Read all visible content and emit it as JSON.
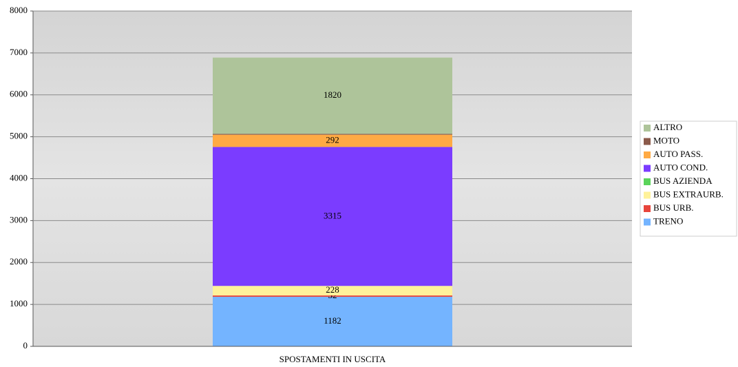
{
  "chart_data": {
    "type": "bar",
    "stacked": true,
    "categories": [
      "SPOSTAMENTI IN USCITA"
    ],
    "series": [
      {
        "name": "TRENO",
        "color": "#74b4ff",
        "values": [
          1182
        ],
        "value_labels": [
          "1182"
        ]
      },
      {
        "name": "BUS URB.",
        "color": "#e8453c",
        "values": [
          32
        ],
        "value_labels": [
          "32"
        ]
      },
      {
        "name": "BUS EXTRAURB.",
        "color": "#fff29a",
        "values": [
          228
        ],
        "value_labels": [
          "228"
        ]
      },
      {
        "name": "BUS  AZIENDA",
        "color": "#5ad45a",
        "values": [
          0
        ]
      },
      {
        "name": "AUTO COND.",
        "color": "#7b3cff",
        "values": [
          3315
        ],
        "value_labels": [
          "3315"
        ]
      },
      {
        "name": "AUTO PASS.",
        "color": "#ffaa44",
        "values": [
          292
        ],
        "value_labels": [
          "292"
        ]
      },
      {
        "name": "MOTO",
        "color": "#8b5a4a",
        "values": [
          20
        ]
      },
      {
        "name": "ALTRO",
        "color": "#aec49a",
        "values": [
          1820
        ],
        "value_labels": [
          "1820"
        ]
      }
    ],
    "ylim": [
      0,
      8000
    ],
    "yticks": [
      0,
      1000,
      2000,
      3000,
      4000,
      5000,
      6000,
      7000,
      8000
    ],
    "grid": true,
    "legend": "right"
  }
}
